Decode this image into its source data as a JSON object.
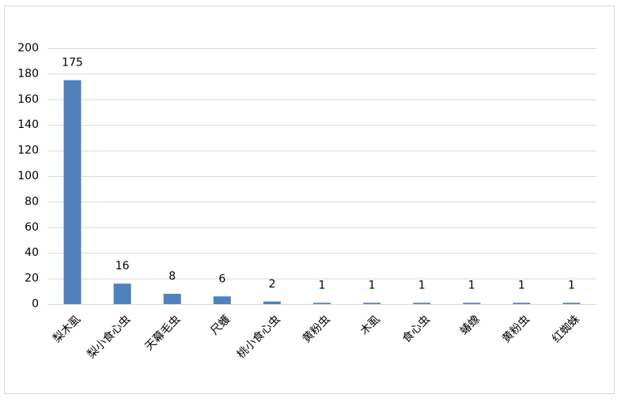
{
  "chart_data": {
    "type": "bar",
    "categories": [
      "梨木虱",
      "梨小食心虫",
      "天幕毛虫",
      "尺蠖",
      "桃小食心虫",
      "黄粉虫",
      "木虱",
      "食心虫",
      "蝽蟓",
      "黄粉虫",
      "红蜘蛛"
    ],
    "values": [
      175,
      16,
      8,
      6,
      2,
      1,
      1,
      1,
      1,
      1,
      1
    ],
    "color": "#4f81bd",
    "ylim": [
      0,
      200
    ],
    "yticks": [
      0,
      20,
      40,
      60,
      80,
      100,
      120,
      140,
      160,
      180,
      200
    ],
    "grid": true
  }
}
